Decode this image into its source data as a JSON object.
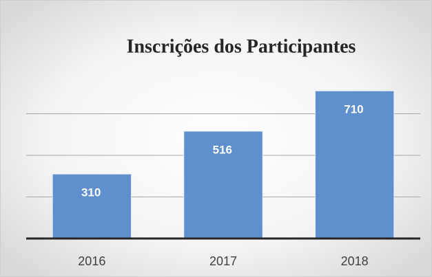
{
  "chart_data": {
    "type": "bar",
    "title": "Inscrições dos Participantes",
    "categories": [
      "2016",
      "2017",
      "2018"
    ],
    "values": [
      310,
      516,
      710
    ],
    "color": "#5f8fcd",
    "ylim": [
      0,
      800
    ],
    "yticks": [
      0,
      200,
      400,
      600,
      800
    ],
    "grid": true
  }
}
